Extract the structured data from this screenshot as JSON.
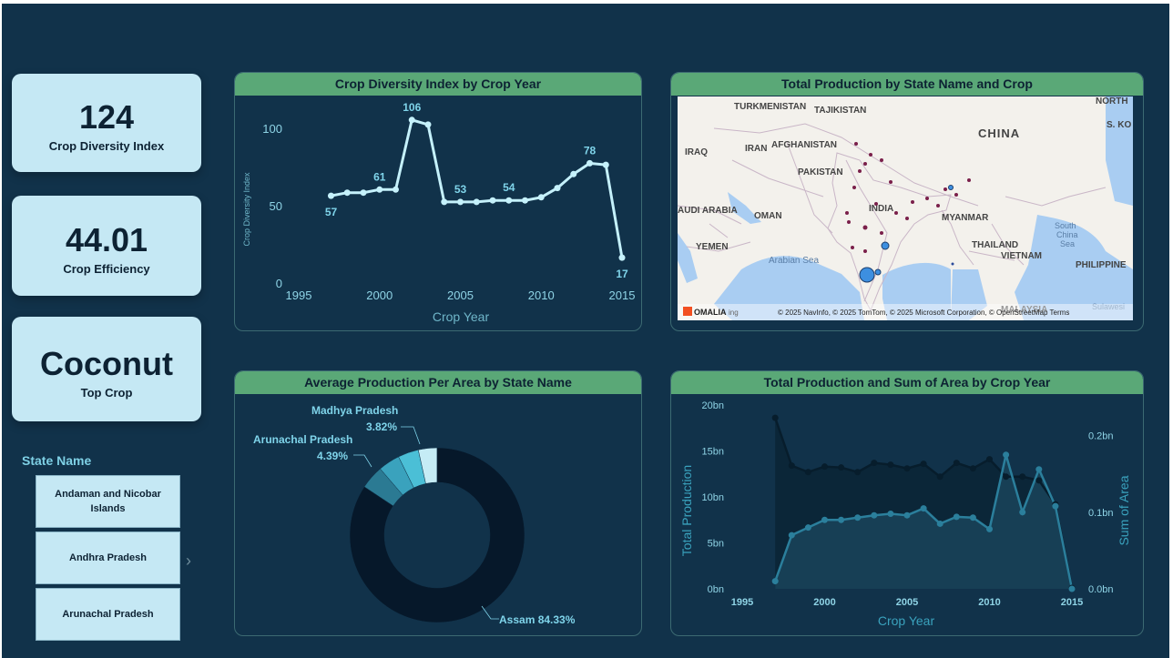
{
  "kpis": [
    {
      "value": "124",
      "label": "Crop Diversity Index"
    },
    {
      "value": "44.01",
      "label": "Crop Efficiency"
    },
    {
      "value": "Coconut",
      "label": "Top Crop"
    }
  ],
  "slicer": {
    "title": "State Name",
    "items": [
      "Andaman and Nicobar Islands",
      "Andhra Pradesh",
      "Arunachal Pradesh"
    ]
  },
  "panels": {
    "diversity": "Crop Diversity Index by Crop Year",
    "map": "Total Production by State Name and Crop",
    "donut": "Average Production Per Area by State Name",
    "combo": "Total Production and Sum of Area by Crop Year"
  },
  "map": {
    "labels": [
      "TURKMENISTAN",
      "TAJIKISTAN",
      "IRAQ",
      "IRAN",
      "AFGHANISTAN",
      "PAKISTAN",
      "CHINA",
      "INDIA",
      "AUDI ARABIA",
      "OMAN",
      "YEMEN",
      "Arabian Sea",
      "MYANMAR",
      "THAILAND",
      "VIETNAM",
      "South",
      "China",
      "Sea",
      "PHILIPPINE",
      "MALAYSIA",
      "NORTH",
      "S. KO",
      "Sulawesi"
    ],
    "attribution": "© 2025 NavInfo, © 2025 TomTom, © 2025 Microsoft Corporation, © OpenStreetMap  Terms",
    "corner_label": "OMALIA",
    "corner_logo": "ing",
    "colors": {
      "land": "#f3f1ec",
      "water": "#a9cdf2",
      "point": "#7a1f4a",
      "bubble": "#3d8fe0"
    }
  },
  "chart_data": [
    {
      "type": "line",
      "title": "Crop Diversity Index by Crop Year",
      "xlabel": "Crop Year",
      "ylabel": "Crop Diversity Index",
      "xlim": [
        1995,
        2015
      ],
      "ylim": [
        0,
        110
      ],
      "xticks": [
        1995,
        2000,
        2005,
        2010,
        2015
      ],
      "yticks": [
        0,
        50,
        100
      ],
      "x": [
        1997,
        1998,
        1999,
        2000,
        2001,
        2002,
        2003,
        2004,
        2005,
        2006,
        2007,
        2008,
        2009,
        2010,
        2011,
        2012,
        2013,
        2014,
        2015
      ],
      "values": [
        57,
        59,
        59,
        61,
        61,
        106,
        103,
        53,
        53,
        53,
        54,
        54,
        54,
        56,
        62,
        71,
        78,
        77,
        17
      ],
      "data_labels": [
        {
          "x": 1997,
          "text": "57"
        },
        {
          "x": 2000,
          "text": "61"
        },
        {
          "x": 2002,
          "text": "106"
        },
        {
          "x": 2005,
          "text": "53"
        },
        {
          "x": 2008,
          "text": "54"
        },
        {
          "x": 2013,
          "text": "78"
        },
        {
          "x": 2015,
          "text": "17"
        }
      ],
      "color": "#c5f1fb"
    },
    {
      "type": "pie",
      "title": "Average Production Per Area by State Name",
      "labels": [
        "Assam",
        "Arunachal Pradesh",
        "Andhra Pradesh",
        "Madhya Pradesh",
        "Andaman and Nicobar Islands"
      ],
      "values": [
        84.33,
        4.39,
        4.0,
        3.82,
        3.46
      ],
      "label_texts": [
        {
          "name": "Assam",
          "pct": "Assam 84.33%"
        },
        {
          "name": "Arunachal Pradesh",
          "pct": "4.39%"
        },
        {
          "name": "Madhya Pradesh",
          "pct": "3.82%"
        }
      ],
      "colors": [
        "#06182a",
        "#2b7a93",
        "#3aa2bd",
        "#4bbfd6",
        "#c5ecf5"
      ]
    },
    {
      "type": "area",
      "title": "Total Production and Sum of Area by Crop Year",
      "xlabel": "Crop Year",
      "ylabel": "Total Production",
      "y2label": "Sum of Area",
      "xlim": [
        1995,
        2015
      ],
      "xticks": [
        1995,
        2000,
        2005,
        2010,
        2015
      ],
      "ylim": [
        0,
        20
      ],
      "yticks": [
        "0bn",
        "5bn",
        "10bn",
        "15bn",
        "20bn"
      ],
      "y2lim": [
        0,
        0.24
      ],
      "y2ticks": [
        "0.0bn",
        "0.1bn",
        "0.2bn"
      ],
      "x": [
        1997,
        1998,
        1999,
        2000,
        2001,
        2002,
        2003,
        2004,
        2005,
        2006,
        2007,
        2008,
        2009,
        2010,
        2011,
        2012,
        2013,
        2014,
        2015
      ],
      "series": [
        {
          "name": "Total Production",
          "axis": "left",
          "values": [
            18.6,
            13.4,
            12.7,
            13.3,
            13.2,
            12.7,
            13.7,
            13.5,
            13.1,
            13.6,
            12.2,
            13.7,
            13.1,
            14.1,
            12.2,
            12.2,
            11.8,
            9.2,
            0.1
          ],
          "color": "#071d2c"
        },
        {
          "name": "Sum of Area",
          "axis": "right",
          "values": [
            0.01,
            0.07,
            0.08,
            0.09,
            0.09,
            0.093,
            0.096,
            0.098,
            0.096,
            0.105,
            0.085,
            0.094,
            0.093,
            0.078,
            0.175,
            0.1,
            0.156,
            0.108,
            0.0
          ],
          "color": "#2b7f9c"
        }
      ]
    }
  ]
}
